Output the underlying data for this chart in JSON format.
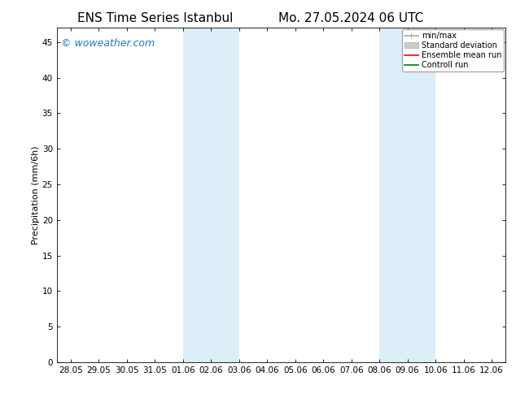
{
  "title_left": "ENS Time Series Istanbul",
  "title_right": "Mo. 27.05.2024 06 UTC",
  "ylabel": "Precipitation (mm/6h)",
  "xlabel": "",
  "background_color": "#ffffff",
  "plot_bg_color": "#ffffff",
  "ylim": [
    0,
    47
  ],
  "yticks": [
    0,
    5,
    10,
    15,
    20,
    25,
    30,
    35,
    40,
    45
  ],
  "xtick_labels": [
    "28.05",
    "29.05",
    "30.05",
    "31.05",
    "01.06",
    "02.06",
    "03.06",
    "04.06",
    "05.06",
    "06.06",
    "07.06",
    "08.06",
    "09.06",
    "10.06",
    "11.06",
    "12.06"
  ],
  "shaded_bands": [
    {
      "x_start": "01.06",
      "x_end": "03.06"
    },
    {
      "x_start": "08.06",
      "x_end": "10.06"
    }
  ],
  "shaded_color": "#dceef8",
  "watermark": "© woweather.com",
  "watermark_color": "#1e7abf",
  "legend_items": [
    {
      "label": "min/max",
      "color": "#aaaaaa",
      "lw": 1.2,
      "ls": "-"
    },
    {
      "label": "Standard deviation",
      "color": "#cccccc",
      "lw": 6,
      "ls": "-"
    },
    {
      "label": "Ensemble mean run",
      "color": "#ff0000",
      "lw": 1.2,
      "ls": "-"
    },
    {
      "label": "Controll run",
      "color": "#008000",
      "lw": 1.2,
      "ls": "-"
    }
  ],
  "title_fontsize": 11,
  "axis_fontsize": 8,
  "tick_fontsize": 7.5,
  "watermark_fontsize": 9,
  "legend_fontsize": 7
}
